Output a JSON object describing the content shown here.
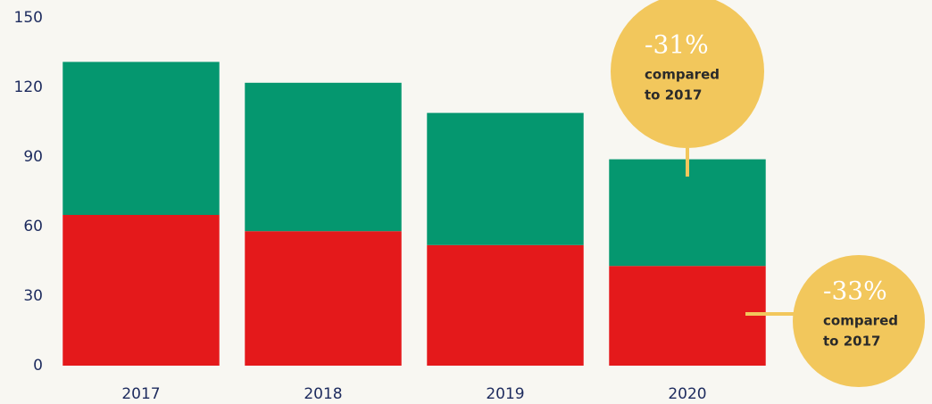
{
  "chart_data": {
    "type": "stacked_bar",
    "categories": [
      "2017",
      "2018",
      "2019",
      "2020"
    ],
    "series": [
      {
        "color": "#e4191b",
        "values": [
          65,
          58,
          52,
          43
        ]
      },
      {
        "color": "#05976f",
        "values": [
          66,
          64,
          57,
          46
        ]
      }
    ],
    "ylim": [
      0,
      150
    ],
    "yticks": [
      0,
      30,
      60,
      90,
      120,
      150
    ],
    "grid": false,
    "annotations": [
      {
        "label": "-31%",
        "lines": [
          "compared",
          "to 2017"
        ],
        "color": "#f2c75c"
      },
      {
        "label": "-33%",
        "lines": [
          "compared",
          "to 2017"
        ],
        "color": "#f2c75c"
      }
    ]
  }
}
